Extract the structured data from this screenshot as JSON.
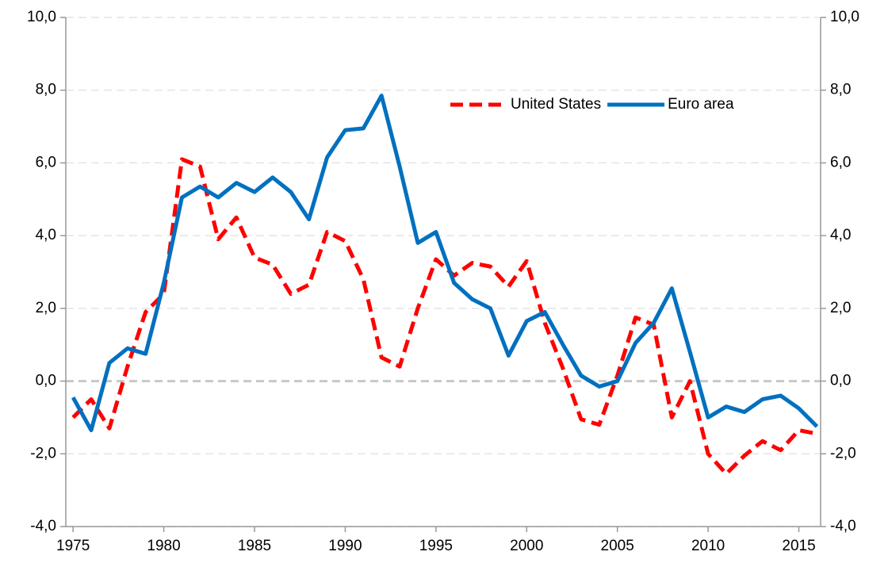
{
  "chart_data": {
    "type": "line",
    "x": [
      1975,
      1976,
      1977,
      1978,
      1979,
      1980,
      1981,
      1982,
      1983,
      1984,
      1985,
      1986,
      1987,
      1988,
      1989,
      1990,
      1991,
      1992,
      1993,
      1994,
      1995,
      1996,
      1997,
      1998,
      1999,
      2000,
      2001,
      2002,
      2003,
      2004,
      2005,
      2006,
      2007,
      2008,
      2009,
      2010,
      2011,
      2012,
      2013,
      2014,
      2015,
      2016
    ],
    "series": [
      {
        "name": "United States",
        "color": "#ff0000",
        "dash": true,
        "values": [
          -1.0,
          -0.5,
          -1.3,
          0.4,
          1.9,
          2.4,
          6.1,
          5.9,
          3.9,
          4.5,
          3.4,
          3.2,
          2.4,
          2.65,
          4.1,
          3.85,
          2.8,
          0.65,
          0.4,
          2.0,
          3.35,
          2.9,
          3.25,
          3.15,
          2.6,
          3.3,
          1.6,
          0.35,
          -1.05,
          -1.2,
          0.15,
          1.75,
          1.55,
          -1.0,
          0.0,
          -2.0,
          -2.55,
          -2.05,
          -1.65,
          -1.9,
          -1.35,
          -1.45
        ]
      },
      {
        "name": "Euro area",
        "color": "#0070c0",
        "dash": false,
        "values": [
          -0.45,
          -1.35,
          0.5,
          0.9,
          0.75,
          2.7,
          5.05,
          5.35,
          5.05,
          5.45,
          5.2,
          5.6,
          5.2,
          4.45,
          6.15,
          6.9,
          6.95,
          7.85,
          5.9,
          3.8,
          4.1,
          2.7,
          2.25,
          2.0,
          0.7,
          1.65,
          1.9,
          1.0,
          0.15,
          -0.15,
          0.0,
          1.05,
          1.6,
          2.55,
          0.8,
          -1.0,
          -0.7,
          -0.85,
          -0.5,
          -0.4,
          -0.75,
          -1.25
        ]
      }
    ],
    "xlim": [
      1974.6,
      2016.2
    ],
    "xticks": [
      1975,
      1980,
      1985,
      1990,
      1995,
      2000,
      2005,
      2010,
      2015
    ],
    "ylim": [
      -4,
      10
    ],
    "yticks": [
      {
        "value": -4,
        "label": "-4,0"
      },
      {
        "value": -2,
        "label": "-2,0"
      },
      {
        "value": 0,
        "label": "0,0"
      },
      {
        "value": 2,
        "label": "2,0"
      },
      {
        "value": 4,
        "label": "4,0"
      },
      {
        "value": 6,
        "label": "6,0"
      },
      {
        "value": 8,
        "label": "8,0"
      },
      {
        "value": 10,
        "label": "10,0"
      }
    ],
    "y2lim": [
      -4,
      10
    ],
    "y2ticks": [
      {
        "value": -4,
        "label": "-4,0"
      },
      {
        "value": -2,
        "label": "-2,0"
      },
      {
        "value": 0,
        "label": "0,0"
      },
      {
        "value": 2,
        "label": "2,0"
      },
      {
        "value": 4,
        "label": "4,0"
      },
      {
        "value": 6,
        "label": "6,0"
      },
      {
        "value": 8,
        "label": "8,0"
      },
      {
        "value": 10,
        "label": "10,0"
      }
    ],
    "grid": true
  }
}
